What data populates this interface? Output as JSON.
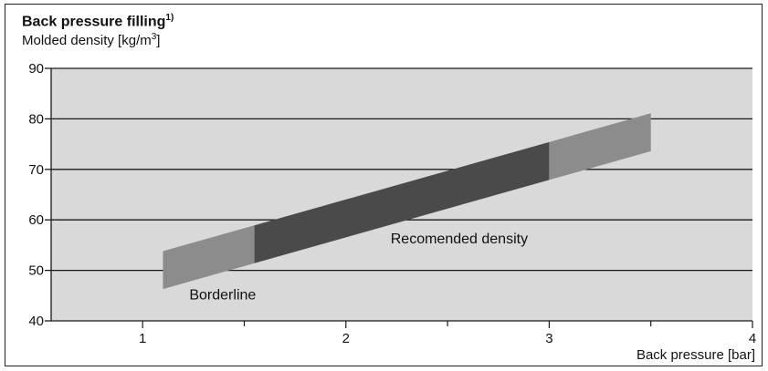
{
  "chart_data": {
    "type": "area",
    "title": "Back pressure filling",
    "title_superscript": "1)",
    "ylabel_text": "Molded density [kg/m",
    "ylabel_superscript": "3",
    "ylabel_close": "]",
    "xlabel": "Back pressure [bar]",
    "xlim": [
      0.55,
      4
    ],
    "ylim": [
      40,
      90
    ],
    "x_ticks": [
      1,
      2,
      3,
      4
    ],
    "y_ticks": [
      40,
      50,
      60,
      70,
      80,
      90
    ],
    "grid": "horizontal",
    "plot_background": "#d9d9d9",
    "band": {
      "x_start": 1.1,
      "x_end": 3.5,
      "lower_at_start": 46.3,
      "upper_at_start": 53.8,
      "lower_at_end": 73.6,
      "upper_at_end": 81.1
    },
    "regions": [
      {
        "label": "",
        "x_from": 1.1,
        "x_to": 1.55,
        "color": "#8c8c8c"
      },
      {
        "label": "Recomended density",
        "x_from": 1.55,
        "x_to": 3.0,
        "color": "#4a4a4a"
      },
      {
        "label": "",
        "x_from": 3.0,
        "x_to": 3.5,
        "color": "#8c8c8c"
      }
    ],
    "annotations": [
      {
        "text": "Recomended density",
        "x": 2.22,
        "y": 55.3
      },
      {
        "text": "Borderline",
        "x": 1.23,
        "y": 44.2
      }
    ]
  }
}
